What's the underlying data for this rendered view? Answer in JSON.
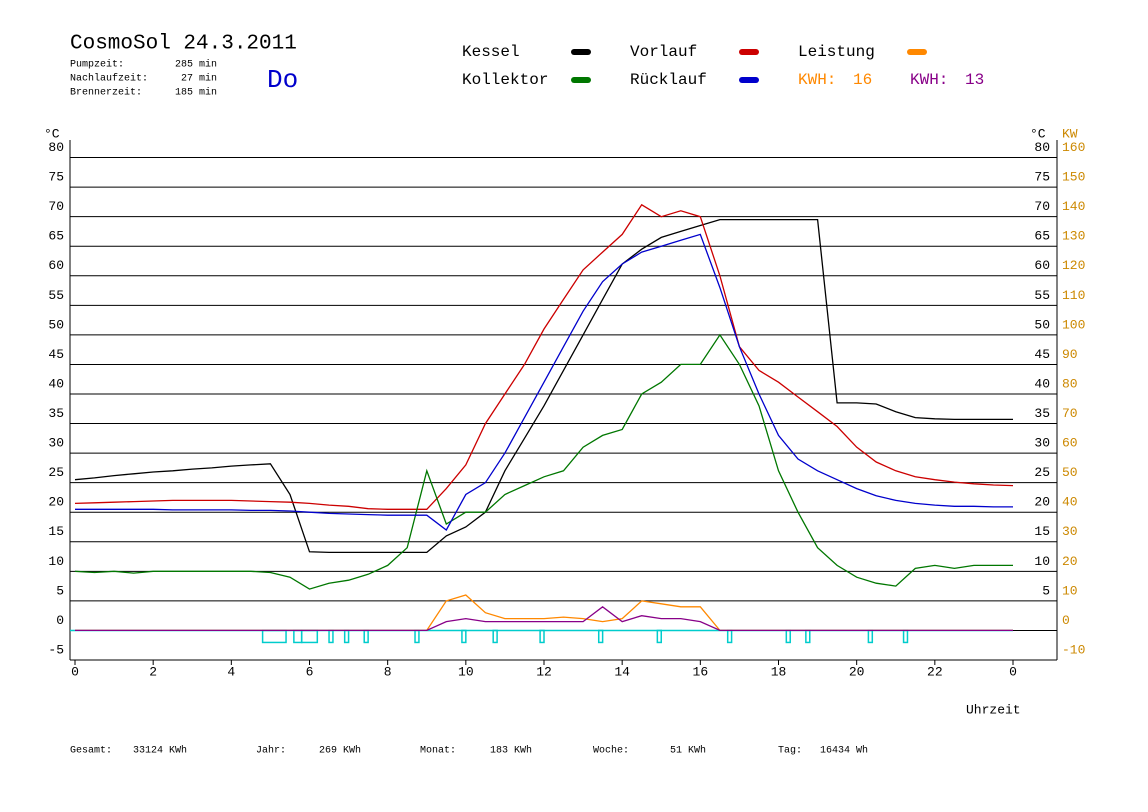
{
  "chart_data": {
    "type": "line",
    "title": "CosmoSol 24.3.2011",
    "day": "Do",
    "info": [
      {
        "label": "Pumpzeit:",
        "value": "285 min"
      },
      {
        "label": "Nachlaufzeit:",
        "value": "27 min"
      },
      {
        "label": "Brennerzeit:",
        "value": "185 min"
      }
    ],
    "y_label": "°C",
    "y2_label": "KW",
    "x_label": "Uhrzeit",
    "x": [
      0,
      0.5,
      1,
      1.5,
      2,
      2.5,
      3,
      3.5,
      4,
      4.5,
      5,
      5.5,
      6,
      6.5,
      7,
      7.5,
      8,
      8.5,
      9,
      9.5,
      10,
      10.5,
      11,
      11.5,
      12,
      12.5,
      13,
      13.5,
      14,
      14.5,
      15,
      15.5,
      16,
      16.5,
      17,
      17.5,
      18,
      18.5,
      19,
      19.5,
      20,
      20.5,
      21,
      21.5,
      22,
      22.5,
      23,
      23.5,
      24
    ],
    "series": [
      {
        "name": "Kessel",
        "color": "#000000",
        "values": [
          25.5,
          25.8,
          26.2,
          26.5,
          26.8,
          27,
          27.3,
          27.5,
          27.8,
          28,
          28.2,
          23,
          13.3,
          13.2,
          13.2,
          13.2,
          13.2,
          13.2,
          13.2,
          16,
          17.5,
          20,
          27,
          32.5,
          38,
          44,
          50,
          56,
          62,
          64.5,
          66.5,
          67.5,
          68.5,
          69.5,
          69.5,
          69.5,
          69.5,
          69.5,
          69.5,
          38.5,
          38.5,
          38.3,
          37,
          36,
          35.8,
          35.7,
          35.7,
          35.7,
          35.7
        ]
      },
      {
        "name": "Vorlauf",
        "color": "#cc0000",
        "values": [
          21.5,
          21.6,
          21.7,
          21.8,
          21.9,
          22,
          22,
          22,
          22,
          21.9,
          21.8,
          21.7,
          21.5,
          21.2,
          21,
          20.6,
          20.5,
          20.5,
          20.5,
          24,
          28,
          35,
          40,
          45,
          51,
          56,
          61,
          64,
          67,
          72,
          70,
          71,
          70,
          60,
          48,
          44,
          42,
          39.5,
          37,
          34.5,
          31,
          28.5,
          27,
          26,
          25.5,
          25.1,
          24.8,
          24.6,
          24.5
        ]
      },
      {
        "name": "Leistung",
        "color": "#ff8800",
        "axis": "y2",
        "values": [
          0,
          0,
          0,
          0,
          0,
          0,
          0,
          0,
          0,
          0,
          0,
          0,
          0,
          0,
          0,
          0,
          0,
          0,
          0,
          10,
          12,
          6,
          4,
          4,
          4,
          4.5,
          4,
          3,
          4,
          10,
          9,
          8,
          8,
          0,
          0,
          0,
          0,
          0,
          0,
          0,
          0,
          0,
          0,
          0,
          0,
          0,
          0,
          0,
          0
        ]
      },
      {
        "name": "Kollektor",
        "color": "#007700",
        "values": [
          10,
          9.8,
          10,
          9.7,
          10,
          10,
          10,
          10,
          10,
          10,
          9.8,
          9,
          7,
          8,
          8.5,
          9.5,
          11,
          14,
          27,
          18,
          20,
          20,
          23,
          24.5,
          26,
          27,
          31,
          33,
          34,
          40,
          42,
          45,
          45,
          50,
          45,
          38,
          27,
          20,
          14,
          11,
          9,
          8,
          7.5,
          10.5,
          11,
          10.5,
          11,
          11,
          11
        ]
      },
      {
        "name": "Rücklauf",
        "color": "#0000cc",
        "values": [
          20.5,
          20.5,
          20.5,
          20.5,
          20.5,
          20.4,
          20.4,
          20.4,
          20.4,
          20.3,
          20.3,
          20.2,
          20,
          19.8,
          19.7,
          19.6,
          19.5,
          19.5,
          19.5,
          17,
          23,
          25,
          30,
          36,
          42,
          48,
          54,
          59,
          62,
          64,
          65,
          66,
          67,
          58,
          48,
          40,
          33,
          29,
          27,
          25.5,
          24,
          22.8,
          22,
          21.5,
          21.2,
          21,
          21,
          20.9,
          20.9
        ]
      },
      {
        "color": "#880088",
        "axis": "y2",
        "values": [
          0,
          0,
          0,
          0,
          0,
          0,
          0,
          0,
          0,
          0,
          0,
          0,
          0,
          0,
          0,
          0,
          0,
          0,
          0,
          3,
          4,
          3,
          3,
          3,
          3,
          3,
          3,
          8,
          3,
          5,
          4,
          4,
          3,
          0,
          0,
          0,
          0,
          0,
          0,
          0,
          0,
          0,
          0,
          0,
          0,
          0,
          0,
          0,
          0
        ]
      }
    ],
    "kwh": [
      {
        "label": "KWH:",
        "value": 16,
        "color": "#ff8800"
      },
      {
        "label": "KWH:",
        "value": 13,
        "color": "#880088"
      }
    ],
    "pump": {
      "color": "#00cccc",
      "intervals": [
        [
          4.8,
          5.4
        ],
        [
          5.6,
          5.8
        ],
        [
          5.8,
          6.2
        ],
        [
          6.5,
          6.6
        ],
        [
          6.9,
          7
        ],
        [
          7.4,
          7.5
        ],
        [
          8.7,
          8.8
        ],
        [
          9.9,
          10
        ],
        [
          10.7,
          10.8
        ],
        [
          11.9,
          12
        ],
        [
          13.4,
          13.5
        ],
        [
          14.9,
          15
        ],
        [
          16.7,
          16.8
        ],
        [
          18.2,
          18.3
        ],
        [
          18.7,
          18.8
        ],
        [
          20.3,
          20.4
        ],
        [
          21.2,
          21.3
        ]
      ]
    },
    "xlim": [
      0,
      24
    ],
    "xticks": [
      0,
      2,
      4,
      6,
      8,
      10,
      12,
      14,
      16,
      18,
      20,
      22,
      {
        "value": 24,
        "label": "0"
      }
    ],
    "ylim": [
      -5,
      85
    ],
    "yticks": [
      -5,
      0,
      5,
      10,
      15,
      20,
      25,
      30,
      35,
      40,
      45,
      50,
      55,
      60,
      65,
      70,
      75,
      80
    ],
    "y_right_ticks": [
      5,
      10,
      15,
      20,
      25,
      30,
      35,
      40,
      45,
      50,
      55,
      60,
      65,
      70,
      75,
      80
    ],
    "y2lim": [
      -10,
      170
    ],
    "y2ticks": [
      -10,
      0,
      10,
      20,
      30,
      40,
      50,
      60,
      70,
      80,
      90,
      100,
      110,
      120,
      130,
      140,
      150,
      160
    ],
    "grid": true,
    "footer": [
      {
        "label": "Gesamt:",
        "value": "33124 KWh"
      },
      {
        "label": "Jahr:",
        "value": "269 KWh"
      },
      {
        "label": "Monat:",
        "value": "183 KWh"
      },
      {
        "label": "Woche:",
        "value": "51 KWh"
      },
      {
        "label": "Tag:",
        "value": "16434 Wh"
      }
    ]
  }
}
